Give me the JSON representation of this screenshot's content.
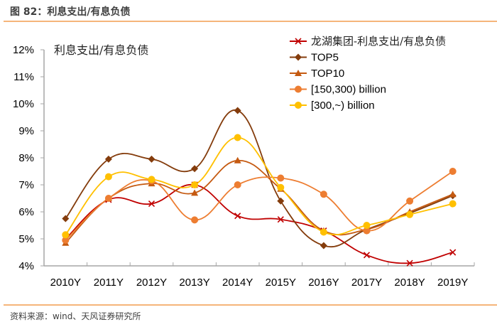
{
  "figure": {
    "title": "图 82：利息支出/有息负债",
    "source": "资料来源：wind、天风证券研究所"
  },
  "chart_data": {
    "type": "line",
    "title": "利息支出/有息负债",
    "xlabel": "",
    "ylabel": "",
    "ylim": [
      4,
      12
    ],
    "y_ticks": [
      "4%",
      "5%",
      "6%",
      "7%",
      "8%",
      "9%",
      "10%",
      "11%",
      "12%"
    ],
    "y_tick_values": [
      4,
      5,
      6,
      7,
      8,
      9,
      10,
      11,
      12
    ],
    "categories": [
      "2010Y",
      "2011Y",
      "2012Y",
      "2013Y",
      "2014Y",
      "2015Y",
      "2016Y",
      "2017Y",
      "2018Y",
      "2019Y"
    ],
    "grid": false,
    "smooth": true,
    "legend_position": "top-right",
    "series": [
      {
        "name": "龙湖集团-利息支出/有息负债",
        "color": "#c00000",
        "marker": "x",
        "values": [
          5.0,
          6.45,
          6.3,
          7.0,
          5.85,
          5.72,
          5.3,
          4.4,
          4.1,
          4.5
        ]
      },
      {
        "name": "TOP5",
        "color": "#843c0c",
        "marker": "diamond",
        "values": [
          5.75,
          7.95,
          7.95,
          7.6,
          9.75,
          6.4,
          4.75,
          5.35,
          5.95,
          6.6
        ]
      },
      {
        "name": "TOP10",
        "color": "#c55a11",
        "marker": "triangle",
        "values": [
          4.85,
          6.5,
          7.05,
          6.7,
          7.9,
          6.85,
          5.3,
          5.35,
          6.0,
          6.65
        ]
      },
      {
        "name": "[150,300) billion",
        "color": "#ed7d31",
        "marker": "circle",
        "values": [
          4.95,
          6.5,
          7.15,
          5.7,
          7.0,
          7.25,
          6.65,
          5.3,
          6.4,
          7.5
        ]
      },
      {
        "name": "[300,~) billion",
        "color": "#ffc000",
        "marker": "circle",
        "values": [
          5.15,
          7.3,
          7.2,
          7.0,
          8.75,
          6.9,
          5.25,
          5.5,
          5.9,
          6.3
        ]
      }
    ]
  }
}
